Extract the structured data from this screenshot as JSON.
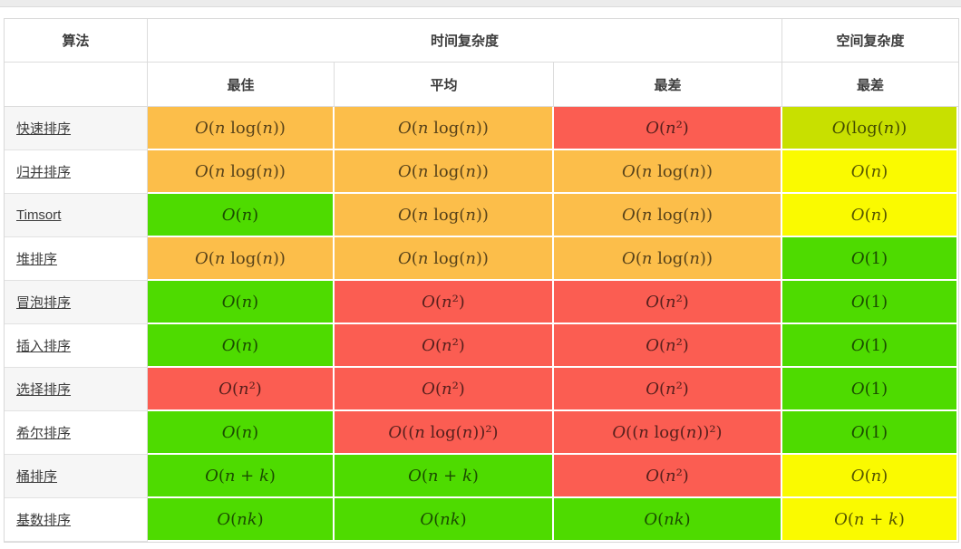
{
  "chart_data": {
    "type": "table",
    "header": {
      "algorithm": "算法",
      "time_complexity": "时间复杂度",
      "space_complexity": "空间复杂度",
      "sub_best": "最佳",
      "sub_average": "平均",
      "sub_worst": "最差",
      "sub_space_worst": "最差"
    },
    "level_colors": {
      "excellent": "#4edb00",
      "good": "#c8e000",
      "fair": "#fafa00",
      "bad": "#fcbe4a",
      "horrible": "#fb5d52"
    },
    "rows": [
      {
        "name": "快速排序",
        "cells": [
          {
            "text": "O(n log(n))",
            "level": "bad"
          },
          {
            "text": "O(n log(n))",
            "level": "bad"
          },
          {
            "text": "O(n²)",
            "level": "horrible"
          },
          {
            "text": "O(log(n))",
            "level": "good"
          }
        ]
      },
      {
        "name": "归并排序",
        "cells": [
          {
            "text": "O(n log(n))",
            "level": "bad"
          },
          {
            "text": "O(n log(n))",
            "level": "bad"
          },
          {
            "text": "O(n log(n))",
            "level": "bad"
          },
          {
            "text": "O(n)",
            "level": "fair"
          }
        ]
      },
      {
        "name": "Timsort",
        "cells": [
          {
            "text": "O(n)",
            "level": "excellent"
          },
          {
            "text": "O(n log(n))",
            "level": "bad"
          },
          {
            "text": "O(n log(n))",
            "level": "bad"
          },
          {
            "text": "O(n)",
            "level": "fair"
          }
        ]
      },
      {
        "name": "堆排序",
        "cells": [
          {
            "text": "O(n log(n))",
            "level": "bad"
          },
          {
            "text": "O(n log(n))",
            "level": "bad"
          },
          {
            "text": "O(n log(n))",
            "level": "bad"
          },
          {
            "text": "O(1)",
            "level": "excellent"
          }
        ]
      },
      {
        "name": "冒泡排序",
        "cells": [
          {
            "text": "O(n)",
            "level": "excellent"
          },
          {
            "text": "O(n²)",
            "level": "horrible"
          },
          {
            "text": "O(n²)",
            "level": "horrible"
          },
          {
            "text": "O(1)",
            "level": "excellent"
          }
        ]
      },
      {
        "name": "插入排序",
        "cells": [
          {
            "text": "O(n)",
            "level": "excellent"
          },
          {
            "text": "O(n²)",
            "level": "horrible"
          },
          {
            "text": "O(n²)",
            "level": "horrible"
          },
          {
            "text": "O(1)",
            "level": "excellent"
          }
        ]
      },
      {
        "name": "选择排序",
        "cells": [
          {
            "text": "O(n²)",
            "level": "horrible"
          },
          {
            "text": "O(n²)",
            "level": "horrible"
          },
          {
            "text": "O(n²)",
            "level": "horrible"
          },
          {
            "text": "O(1)",
            "level": "excellent"
          }
        ]
      },
      {
        "name": "希尔排序",
        "cells": [
          {
            "text": "O(n)",
            "level": "excellent"
          },
          {
            "text": "O((n log(n))²)",
            "level": "horrible"
          },
          {
            "text": "O((n log(n))²)",
            "level": "horrible"
          },
          {
            "text": "O(1)",
            "level": "excellent"
          }
        ]
      },
      {
        "name": "桶排序",
        "cells": [
          {
            "text": "O(n + k)",
            "level": "excellent"
          },
          {
            "text": "O(n + k)",
            "level": "excellent"
          },
          {
            "text": "O(n²)",
            "level": "horrible"
          },
          {
            "text": "O(n)",
            "level": "fair"
          }
        ]
      },
      {
        "name": "基数排序",
        "cells": [
          {
            "text": "O(nk)",
            "level": "excellent"
          },
          {
            "text": "O(nk)",
            "level": "excellent"
          },
          {
            "text": "O(nk)",
            "level": "excellent"
          },
          {
            "text": "O(n + k)",
            "level": "fair"
          }
        ]
      }
    ]
  }
}
